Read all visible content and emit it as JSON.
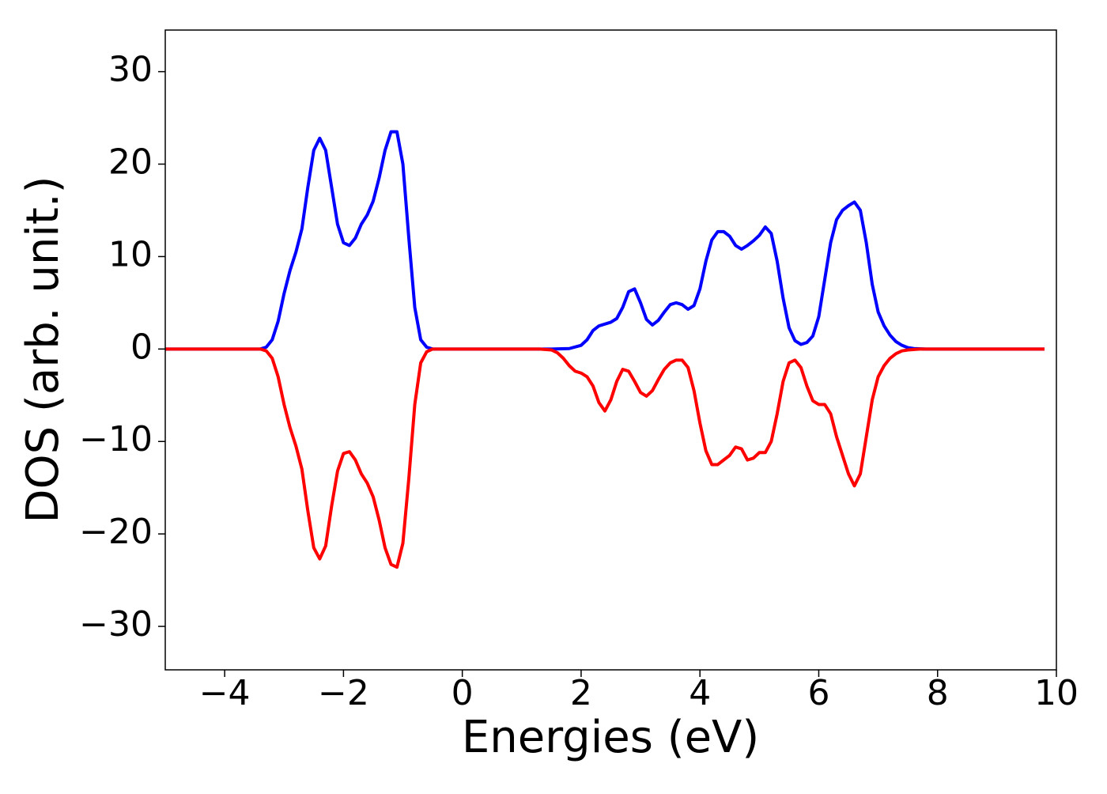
{
  "chart_data": {
    "type": "line",
    "xlabel": "Energies (eV)",
    "ylabel": "DOS (arb. unit.)",
    "xlim": [
      -5,
      10
    ],
    "ylim": [
      -34.7,
      34.5
    ],
    "xticks": [
      {
        "value": -4,
        "label": "−4"
      },
      {
        "value": -2,
        "label": "−2"
      },
      0,
      2,
      4,
      6,
      8,
      10
    ],
    "yticks": [
      {
        "value": -30,
        "label": "−30"
      },
      {
        "value": -20,
        "label": "−20"
      },
      {
        "value": -10,
        "label": "−10"
      },
      0,
      10,
      20,
      30
    ],
    "grid": false,
    "series": [
      {
        "color": "#0000ff",
        "x": [
          -5,
          -3.4,
          -3.3,
          -3.2,
          -3.1,
          -3.0,
          -2.9,
          -2.8,
          -2.7,
          -2.6,
          -2.5,
          -2.4,
          -2.3,
          -2.2,
          -2.1,
          -2.0,
          -1.9,
          -1.8,
          -1.7,
          -1.6,
          -1.5,
          -1.4,
          -1.3,
          -1.2,
          -1.1,
          -1.0,
          -0.9,
          -0.8,
          -0.7,
          -0.6,
          -0.5,
          1.5,
          1.8,
          2.0,
          2.1,
          2.2,
          2.3,
          2.5,
          2.6,
          2.7,
          2.8,
          2.9,
          3.0,
          3.1,
          3.2,
          3.3,
          3.4,
          3.5,
          3.6,
          3.7,
          3.8,
          3.9,
          4.0,
          4.1,
          4.2,
          4.3,
          4.4,
          4.5,
          4.6,
          4.7,
          4.8,
          4.9,
          5.0,
          5.1,
          5.2,
          5.3,
          5.4,
          5.5,
          5.6,
          5.7,
          5.8,
          5.9,
          6.0,
          6.1,
          6.2,
          6.3,
          6.4,
          6.5,
          6.6,
          6.7,
          6.8,
          6.9,
          7.0,
          7.1,
          7.2,
          7.3,
          7.4,
          7.5,
          7.6,
          7.8,
          9.8
        ],
        "values": [
          0,
          0,
          0.2,
          1,
          3,
          6,
          8.5,
          10.5,
          13,
          17.5,
          21.5,
          22.8,
          21.5,
          17.5,
          13.5,
          11.5,
          11.2,
          12,
          13.5,
          14.5,
          16,
          18.5,
          21.5,
          23.5,
          23.5,
          20,
          12,
          4.5,
          1,
          0.2,
          0,
          0,
          0.05,
          0.4,
          1,
          2,
          2.5,
          2.9,
          3.3,
          4.5,
          6.2,
          6.5,
          5,
          3.2,
          2.6,
          3.1,
          4,
          4.8,
          5,
          4.8,
          4.3,
          4.7,
          6.5,
          9.5,
          11.8,
          12.7,
          12.7,
          12.2,
          11.2,
          10.8,
          11.2,
          11.7,
          12.3,
          13.2,
          12.5,
          9.5,
          5.5,
          2.3,
          0.9,
          0.5,
          0.7,
          1.4,
          3.5,
          7.5,
          11.5,
          14,
          15,
          15.5,
          15.9,
          15,
          11.5,
          7,
          4,
          2.5,
          1.5,
          0.8,
          0.4,
          0.15,
          0.05,
          0,
          0
        ]
      },
      {
        "color": "#ff0000",
        "x": [
          -5,
          -3.4,
          -3.3,
          -3.2,
          -3.1,
          -3.0,
          -2.9,
          -2.8,
          -2.7,
          -2.6,
          -2.5,
          -2.4,
          -2.3,
          -2.2,
          -2.1,
          -2.0,
          -1.9,
          -1.8,
          -1.7,
          -1.6,
          -1.5,
          -1.4,
          -1.3,
          -1.2,
          -1.1,
          -1.0,
          -0.9,
          -0.8,
          -0.7,
          -0.6,
          -0.5,
          1.3,
          1.5,
          1.6,
          1.7,
          1.8,
          1.9,
          2.0,
          2.1,
          2.2,
          2.3,
          2.4,
          2.5,
          2.6,
          2.7,
          2.8,
          2.9,
          3.0,
          3.1,
          3.2,
          3.3,
          3.4,
          3.5,
          3.6,
          3.7,
          3.8,
          3.9,
          4.0,
          4.1,
          4.2,
          4.3,
          4.4,
          4.5,
          4.6,
          4.7,
          4.8,
          4.9,
          5.0,
          5.1,
          5.2,
          5.3,
          5.4,
          5.5,
          5.6,
          5.7,
          5.8,
          5.9,
          6.0,
          6.1,
          6.2,
          6.3,
          6.4,
          6.5,
          6.6,
          6.7,
          6.8,
          6.9,
          7.0,
          7.1,
          7.2,
          7.3,
          7.4,
          7.5,
          7.7,
          9.8
        ],
        "values": [
          0,
          0,
          -0.2,
          -1,
          -3,
          -6,
          -8.5,
          -10.5,
          -13,
          -17.5,
          -21.5,
          -22.7,
          -21.3,
          -17,
          -13.2,
          -11.3,
          -11.1,
          -12,
          -13.5,
          -14.5,
          -16,
          -18.5,
          -21.5,
          -23.3,
          -23.6,
          -21,
          -14,
          -6,
          -1.5,
          -0.3,
          0,
          0,
          -0.1,
          -0.4,
          -1,
          -1.8,
          -2.4,
          -2.6,
          -3,
          -4,
          -5.8,
          -6.7,
          -5.5,
          -3.5,
          -2.2,
          -2.4,
          -3.5,
          -4.7,
          -5.1,
          -4.5,
          -3.3,
          -2.2,
          -1.5,
          -1.2,
          -1.2,
          -2,
          -4.5,
          -8,
          -11,
          -12.5,
          -12.5,
          -12,
          -11.5,
          -10.6,
          -10.8,
          -12,
          -11.8,
          -11.2,
          -11.2,
          -10,
          -7,
          -3.5,
          -1.5,
          -1.2,
          -2,
          -4,
          -5.6,
          -6,
          -6,
          -7,
          -9.5,
          -11.5,
          -13.5,
          -14.8,
          -13.5,
          -9.5,
          -5.5,
          -3,
          -1.8,
          -1,
          -0.5,
          -0.2,
          -0.1,
          0,
          0
        ]
      }
    ]
  }
}
